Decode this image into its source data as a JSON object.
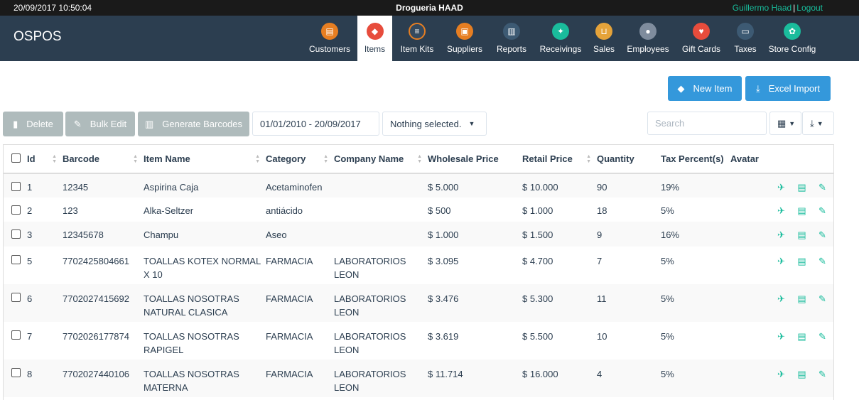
{
  "topbar": {
    "datetime": "20/09/2017 10:50:04",
    "store_name": "Drogueria HAAD",
    "user": "Guillermo Haad",
    "separator": "|",
    "logout": "Logout"
  },
  "navbar": {
    "brand": "OSPOS",
    "items": [
      {
        "label": "Customers",
        "icon": "customers-icon",
        "color": "#e67e22"
      },
      {
        "label": "Items",
        "icon": "items-icon",
        "color": "#e74c3c"
      },
      {
        "label": "Item Kits",
        "icon": "item-kits-icon",
        "color": "#34495e"
      },
      {
        "label": "Suppliers",
        "icon": "suppliers-icon",
        "color": "#e67e22"
      },
      {
        "label": "Reports",
        "icon": "reports-icon",
        "color": "#3d5a73"
      },
      {
        "label": "Receivings",
        "icon": "receivings-icon",
        "color": "#1abc9c"
      },
      {
        "label": "Sales",
        "icon": "sales-icon",
        "color": "#e5a33a"
      },
      {
        "label": "Employees",
        "icon": "employees-icon",
        "color": "#7f8c9d"
      },
      {
        "label": "Gift Cards",
        "icon": "gift-cards-icon",
        "color": "#e74c3c"
      },
      {
        "label": "Taxes",
        "icon": "taxes-icon",
        "color": "#3d5a73"
      },
      {
        "label": "Store Config",
        "icon": "store-config-icon",
        "color": "#1abc9c"
      }
    ]
  },
  "toolbar": {
    "new_item": "New Item",
    "excel_import": "Excel Import",
    "delete": "Delete",
    "bulk_edit": "Bulk Edit",
    "generate_barcodes": "Generate Barcodes",
    "date_range": "01/01/2010 - 20/09/2017",
    "filter_select": "Nothing selected.",
    "search_placeholder": "Search"
  },
  "table": {
    "headers": [
      "Id",
      "Barcode",
      "Item Name",
      "Category",
      "Company Name",
      "Wholesale Price",
      "Retail Price",
      "Quantity",
      "Tax Percent(s)",
      "Avatar"
    ],
    "rows": [
      {
        "id": "1",
        "barcode": "12345",
        "name": "Aspirina Caja",
        "category": "Acetaminofen",
        "company": "",
        "wholesale": "$ 5.000",
        "retail": "$ 10.000",
        "quantity": "90",
        "tax": "19%"
      },
      {
        "id": "2",
        "barcode": "123",
        "name": "Alka-Seltzer",
        "category": "antiácido",
        "company": "",
        "wholesale": "$ 500",
        "retail": "$ 1.000",
        "quantity": "18",
        "tax": "5%"
      },
      {
        "id": "3",
        "barcode": "12345678",
        "name": "Champu",
        "category": "Aseo",
        "company": "",
        "wholesale": "$ 1.000",
        "retail": "$ 1.500",
        "quantity": "9",
        "tax": "16%"
      },
      {
        "id": "5",
        "barcode": "7702425804661",
        "name": "TOALLAS KOTEX NORMAL X 10",
        "category": "FARMACIA",
        "company": "LABORATORIOS LEON",
        "wholesale": "$ 3.095",
        "retail": "$ 4.700",
        "quantity": "7",
        "tax": "5%"
      },
      {
        "id": "6",
        "barcode": "7702027415692",
        "name": "TOALLAS NOSOTRAS NATURAL CLASICA",
        "category": "FARMACIA",
        "company": "LABORATORIOS LEON",
        "wholesale": "$ 3.476",
        "retail": "$ 5.300",
        "quantity": "11",
        "tax": "5%"
      },
      {
        "id": "7",
        "barcode": "7702026177874",
        "name": "TOALLAS NOSOTRAS RAPIGEL",
        "category": "FARMACIA",
        "company": "LABORATORIOS LEON",
        "wholesale": "$ 3.619",
        "retail": "$ 5.500",
        "quantity": "10",
        "tax": "5%"
      },
      {
        "id": "8",
        "barcode": "7702027440106",
        "name": "TOALLAS NOSOTRAS MATERNA",
        "category": "FARMACIA",
        "company": "LABORATORIOS LEON",
        "wholesale": "$ 11.714",
        "retail": "$ 16.000",
        "quantity": "4",
        "tax": "5%"
      }
    ]
  }
}
